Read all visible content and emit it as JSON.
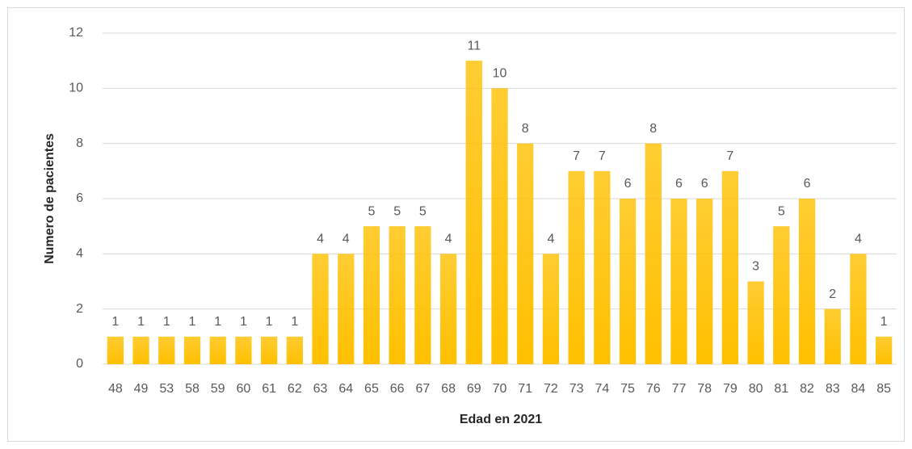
{
  "chart_data": {
    "type": "bar",
    "x_label": "Edad en 2021",
    "y_label": "Numero de pacientes",
    "categories": [
      "48",
      "49",
      "53",
      "58",
      "59",
      "60",
      "61",
      "62",
      "63",
      "64",
      "65",
      "66",
      "67",
      "68",
      "69",
      "70",
      "71",
      "72",
      "73",
      "74",
      "75",
      "76",
      "77",
      "78",
      "79",
      "80",
      "81",
      "82",
      "83",
      "84",
      "85"
    ],
    "values": [
      1,
      1,
      1,
      1,
      1,
      1,
      1,
      1,
      4,
      4,
      5,
      5,
      5,
      4,
      11,
      10,
      8,
      4,
      7,
      7,
      6,
      8,
      6,
      6,
      7,
      3,
      5,
      6,
      2,
      4,
      1
    ],
    "color": "#ffc000",
    "ylim": [
      0,
      12
    ],
    "yticks": [
      0,
      2,
      4,
      6,
      8,
      10,
      12
    ],
    "grid": true
  }
}
